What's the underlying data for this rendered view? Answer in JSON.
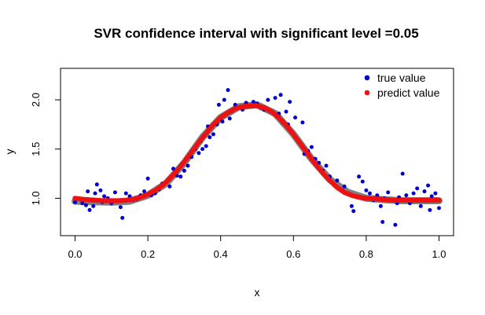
{
  "chart_data": {
    "type": "scatter",
    "title": "SVR confidence interval with significant level =0.05",
    "xlabel": "x",
    "ylabel": "y",
    "xlim": [
      -0.04,
      1.04
    ],
    "ylim": [
      0.62,
      2.32
    ],
    "x_ticks": [
      0.0,
      0.2,
      0.4,
      0.6,
      0.8,
      1.0
    ],
    "x_tick_labels": [
      "0.0",
      "0.2",
      "0.4",
      "0.6",
      "0.8",
      "1.0"
    ],
    "y_ticks": [
      1.0,
      1.5,
      2.0
    ],
    "y_tick_labels": [
      "1.0",
      "1.5",
      "2.0"
    ],
    "grid": false,
    "legend_position": "top-right",
    "colors": {
      "true_value": "#0000CD",
      "predict_value": "#EE1111",
      "confidence_band": "#808080"
    },
    "series": [
      {
        "name": "true value",
        "kind": "points",
        "points": [
          [
            0.0,
            0.96
          ],
          [
            0.01,
            1.0
          ],
          [
            0.02,
            0.95
          ],
          [
            0.03,
            0.93
          ],
          [
            0.035,
            1.07
          ],
          [
            0.04,
            0.88
          ],
          [
            0.05,
            0.92
          ],
          [
            0.055,
            1.05
          ],
          [
            0.06,
            1.14
          ],
          [
            0.07,
            1.08
          ],
          [
            0.075,
            0.96
          ],
          [
            0.08,
            1.02
          ],
          [
            0.09,
            1.0
          ],
          [
            0.1,
            0.95
          ],
          [
            0.11,
            1.06
          ],
          [
            0.12,
            0.97
          ],
          [
            0.125,
            0.91
          ],
          [
            0.13,
            0.8
          ],
          [
            0.14,
            1.05
          ],
          [
            0.15,
            1.02
          ],
          [
            0.16,
            0.98
          ],
          [
            0.17,
            0.99
          ],
          [
            0.18,
            1.03
          ],
          [
            0.19,
            1.07
          ],
          [
            0.2,
            1.2
          ],
          [
            0.21,
            1.03
          ],
          [
            0.22,
            1.05
          ],
          [
            0.23,
            1.09
          ],
          [
            0.24,
            1.15
          ],
          [
            0.25,
            1.17
          ],
          [
            0.26,
            1.12
          ],
          [
            0.27,
            1.3
          ],
          [
            0.28,
            1.23
          ],
          [
            0.29,
            1.22
          ],
          [
            0.3,
            1.28
          ],
          [
            0.31,
            1.33
          ],
          [
            0.32,
            1.42
          ],
          [
            0.33,
            1.5
          ],
          [
            0.34,
            1.46
          ],
          [
            0.345,
            1.58
          ],
          [
            0.35,
            1.5
          ],
          [
            0.36,
            1.53
          ],
          [
            0.365,
            1.73
          ],
          [
            0.37,
            1.62
          ],
          [
            0.38,
            1.65
          ],
          [
            0.39,
            1.75
          ],
          [
            0.395,
            1.95
          ],
          [
            0.4,
            1.82
          ],
          [
            0.405,
            1.78
          ],
          [
            0.41,
            2.0
          ],
          [
            0.415,
            1.85
          ],
          [
            0.42,
            2.1
          ],
          [
            0.425,
            1.81
          ],
          [
            0.43,
            1.88
          ],
          [
            0.44,
            1.95
          ],
          [
            0.45,
            1.92
          ],
          [
            0.46,
            1.9
          ],
          [
            0.47,
            1.97
          ],
          [
            0.48,
            1.94
          ],
          [
            0.49,
            1.98
          ],
          [
            0.5,
            1.96
          ],
          [
            0.51,
            1.92
          ],
          [
            0.52,
            1.9
          ],
          [
            0.53,
            2.0
          ],
          [
            0.54,
            1.88
          ],
          [
            0.55,
            2.02
          ],
          [
            0.56,
            1.86
          ],
          [
            0.565,
            2.05
          ],
          [
            0.57,
            1.77
          ],
          [
            0.58,
            1.88
          ],
          [
            0.585,
            1.75
          ],
          [
            0.59,
            1.98
          ],
          [
            0.6,
            1.65
          ],
          [
            0.605,
            1.82
          ],
          [
            0.61,
            1.6
          ],
          [
            0.62,
            1.55
          ],
          [
            0.625,
            1.77
          ],
          [
            0.63,
            1.45
          ],
          [
            0.64,
            1.48
          ],
          [
            0.65,
            1.52
          ],
          [
            0.66,
            1.4
          ],
          [
            0.665,
            1.32
          ],
          [
            0.67,
            1.36
          ],
          [
            0.68,
            1.28
          ],
          [
            0.69,
            1.33
          ],
          [
            0.7,
            1.22
          ],
          [
            0.71,
            1.15
          ],
          [
            0.72,
            1.18
          ],
          [
            0.73,
            1.08
          ],
          [
            0.74,
            1.12
          ],
          [
            0.75,
            1.05
          ],
          [
            0.76,
            0.92
          ],
          [
            0.765,
            0.87
          ],
          [
            0.77,
            1.02
          ],
          [
            0.78,
            1.22
          ],
          [
            0.79,
            1.17
          ],
          [
            0.8,
            1.08
          ],
          [
            0.81,
            1.05
          ],
          [
            0.82,
            0.98
          ],
          [
            0.83,
            1.03
          ],
          [
            0.84,
            0.92
          ],
          [
            0.845,
            0.76
          ],
          [
            0.85,
            1.0
          ],
          [
            0.86,
            1.06
          ],
          [
            0.87,
            0.98
          ],
          [
            0.88,
            0.73
          ],
          [
            0.885,
            0.95
          ],
          [
            0.89,
            1.01
          ],
          [
            0.9,
            1.25
          ],
          [
            0.91,
            1.03
          ],
          [
            0.92,
            0.95
          ],
          [
            0.93,
            1.05
          ],
          [
            0.94,
            1.1
          ],
          [
            0.95,
            0.92
          ],
          [
            0.96,
            1.07
          ],
          [
            0.97,
            1.13
          ],
          [
            0.975,
            0.88
          ],
          [
            0.98,
            1.02
          ],
          [
            0.99,
            1.05
          ],
          [
            1.0,
            0.9
          ]
        ]
      },
      {
        "name": "predict value",
        "kind": "curve",
        "points": [
          [
            0.0,
            1.0
          ],
          [
            0.02,
            0.99
          ],
          [
            0.04,
            0.985
          ],
          [
            0.06,
            0.98
          ],
          [
            0.08,
            0.975
          ],
          [
            0.1,
            0.975
          ],
          [
            0.12,
            0.975
          ],
          [
            0.14,
            0.98
          ],
          [
            0.16,
            0.99
          ],
          [
            0.18,
            1.01
          ],
          [
            0.2,
            1.04
          ],
          [
            0.22,
            1.08
          ],
          [
            0.24,
            1.13
          ],
          [
            0.26,
            1.2
          ],
          [
            0.28,
            1.28
          ],
          [
            0.3,
            1.37
          ],
          [
            0.32,
            1.47
          ],
          [
            0.34,
            1.57
          ],
          [
            0.36,
            1.66
          ],
          [
            0.38,
            1.75
          ],
          [
            0.4,
            1.82
          ],
          [
            0.42,
            1.87
          ],
          [
            0.44,
            1.91
          ],
          [
            0.46,
            1.93
          ],
          [
            0.48,
            1.94
          ],
          [
            0.5,
            1.94
          ],
          [
            0.52,
            1.92
          ],
          [
            0.54,
            1.88
          ],
          [
            0.56,
            1.82
          ],
          [
            0.58,
            1.74
          ],
          [
            0.6,
            1.65
          ],
          [
            0.62,
            1.55
          ],
          [
            0.64,
            1.45
          ],
          [
            0.66,
            1.35
          ],
          [
            0.68,
            1.26
          ],
          [
            0.7,
            1.18
          ],
          [
            0.72,
            1.11
          ],
          [
            0.74,
            1.06
          ],
          [
            0.76,
            1.03
          ],
          [
            0.78,
            1.01
          ],
          [
            0.8,
            1.0
          ],
          [
            0.82,
            0.995
          ],
          [
            0.84,
            0.99
          ],
          [
            0.86,
            0.985
          ],
          [
            0.88,
            0.98
          ],
          [
            0.9,
            0.98
          ],
          [
            0.92,
            0.98
          ],
          [
            0.94,
            0.98
          ],
          [
            0.96,
            0.98
          ],
          [
            0.98,
            0.98
          ],
          [
            1.0,
            0.98
          ]
        ]
      },
      {
        "name": "",
        "kind": "band",
        "points": [
          [
            0.0,
            0.97
          ],
          [
            0.05,
            0.965
          ],
          [
            0.1,
            0.96
          ],
          [
            0.15,
            0.97
          ],
          [
            0.2,
            1.03
          ],
          [
            0.25,
            1.15
          ],
          [
            0.3,
            1.36
          ],
          [
            0.35,
            1.62
          ],
          [
            0.4,
            1.82
          ],
          [
            0.45,
            1.93
          ],
          [
            0.5,
            1.95
          ],
          [
            0.55,
            1.86
          ],
          [
            0.6,
            1.65
          ],
          [
            0.65,
            1.4
          ],
          [
            0.7,
            1.19
          ],
          [
            0.75,
            1.06
          ],
          [
            0.8,
            1.0
          ],
          [
            0.85,
            0.985
          ],
          [
            0.9,
            0.975
          ],
          [
            0.95,
            0.975
          ],
          [
            1.0,
            0.975
          ]
        ]
      }
    ]
  }
}
